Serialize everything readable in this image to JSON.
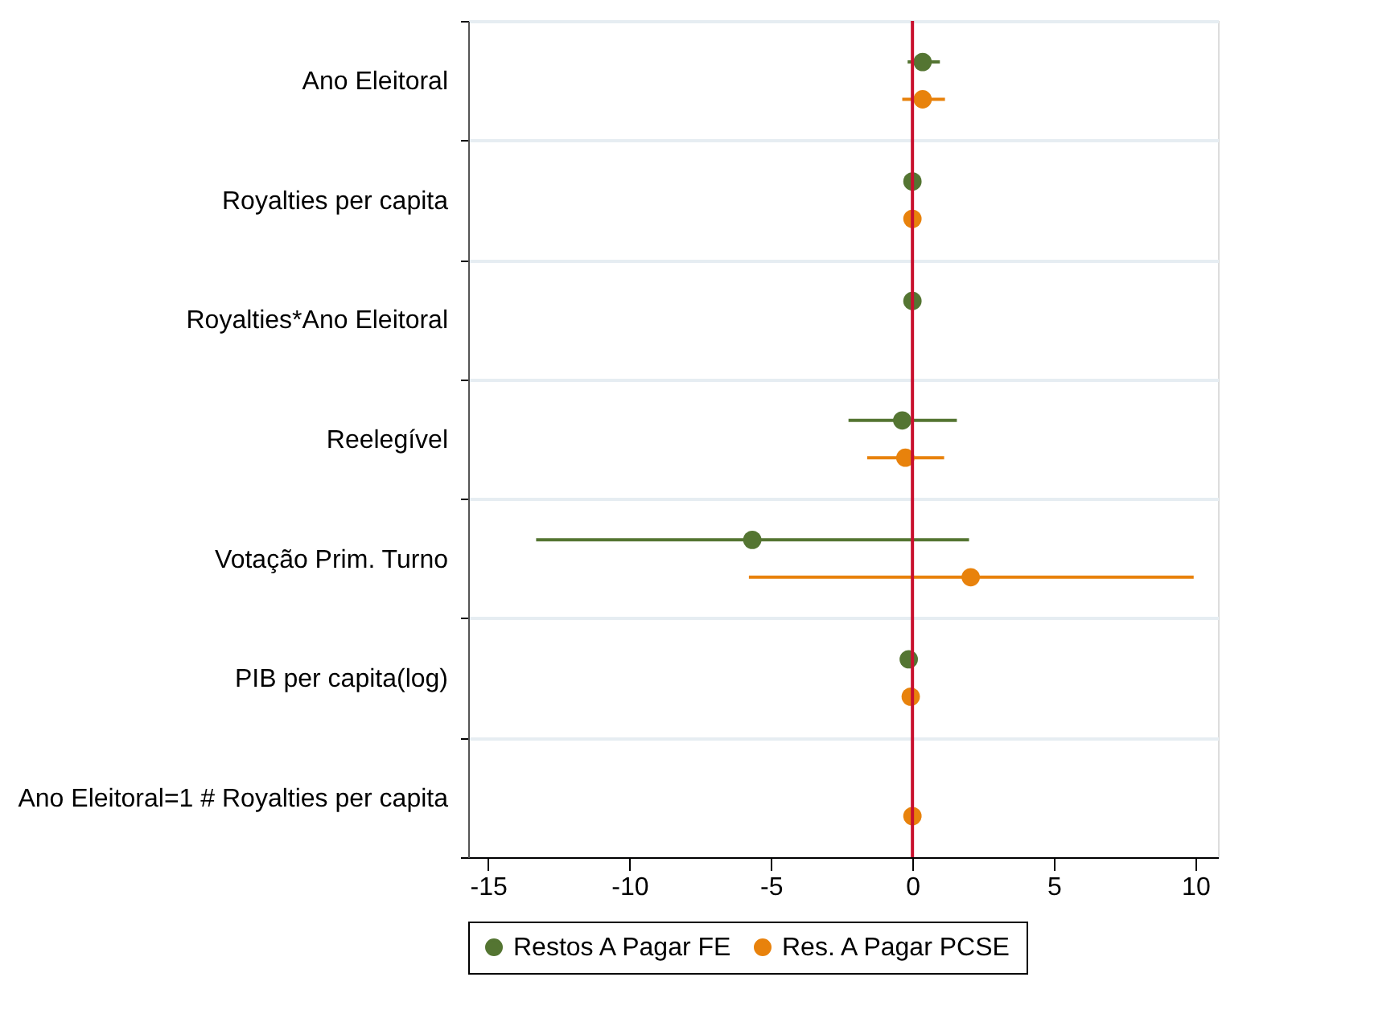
{
  "chart_data": {
    "type": "scatter",
    "orientation": "horizontal",
    "categories": [
      "Ano Eleitoral",
      "Royalties per capita",
      "Royalties*Ano Eleitoral",
      "Reelegível",
      "Votação Prim. Turno",
      "PIB per capita(log)",
      "Ano Eleitoral=1 # Royalties per capita"
    ],
    "series": [
      {
        "name": "Restos A Pagar FE",
        "color": "#547532",
        "values": [
          0.36,
          0,
          0,
          -0.36,
          -5.66,
          -0.13,
          null
        ],
        "errors": [
          [
            -0.17,
            0.97
          ],
          null,
          null,
          [
            -2.26,
            1.57
          ],
          [
            -13.3,
            2.0
          ],
          null,
          null
        ]
      },
      {
        "name": "Res. A Pagar PCSE",
        "color": "#e8820c",
        "values": [
          0.36,
          0,
          null,
          -0.25,
          2.06,
          -0.06,
          0
        ],
        "errors": [
          [
            -0.36,
            1.15
          ],
          null,
          null,
          [
            -1.6,
            1.12
          ],
          [
            -5.78,
            9.94
          ],
          null,
          null
        ]
      }
    ],
    "xlim": [
      -15.7,
      10.8
    ],
    "xticks": [
      -15,
      -10,
      -5,
      0,
      5,
      10
    ],
    "ref_lines": [
      {
        "axis": "x",
        "value": 0,
        "color": "#c8102e"
      }
    ],
    "grid": "y",
    "legend": "bottom",
    "marker": "circle"
  }
}
